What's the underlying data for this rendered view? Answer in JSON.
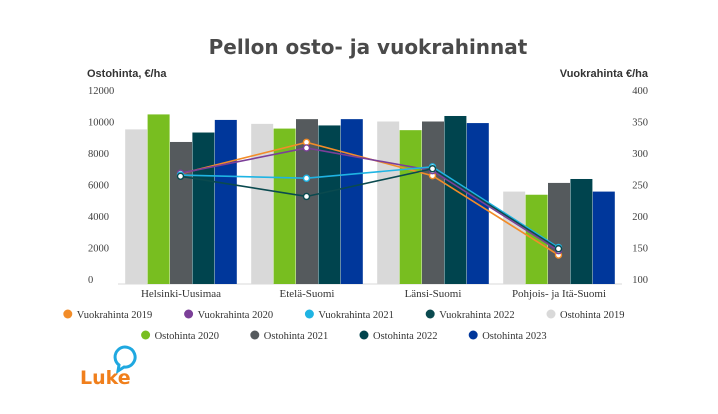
{
  "chart_data": {
    "type": "bar",
    "title": "Pellon osto- ja vuokrahinnat",
    "ylabel": "Ostohinta, €/ha",
    "y2label": "Vuokrahinta €/ha",
    "ylim": [
      0,
      12000
    ],
    "y2lim": [
      100,
      400
    ],
    "yticks": [
      "0",
      "2000",
      "4000",
      "6000",
      "8000",
      "10000",
      "12000"
    ],
    "y2ticks": [
      "100",
      "150",
      "200",
      "250",
      "300",
      "350",
      "400"
    ],
    "categories": [
      "Helsinki-Uusimaa",
      "Etelä-Suomi",
      "Länsi-Suomi",
      "Pohjois- ja Itä-Suomi"
    ],
    "bar_series": [
      {
        "name": "Ostohinta 2019",
        "color": "#d9d9d9",
        "values": [
          9500,
          9850,
          10000,
          5550
        ]
      },
      {
        "name": "Ostohinta 2020",
        "color": "#78be20",
        "values": [
          10450,
          9550,
          9450,
          5350
        ]
      },
      {
        "name": "Ostohinta 2021",
        "color": "#555a5d",
        "values": [
          8700,
          10150,
          10000,
          6100
        ]
      },
      {
        "name": "Ostohinta 2022",
        "color": "#00444e",
        "values": [
          9300,
          9750,
          10350,
          6350
        ]
      },
      {
        "name": "Ostohinta 2023",
        "color": "#00379b",
        "values": [
          10100,
          10150,
          9900,
          5550
        ]
      }
    ],
    "line_series": [
      {
        "name": "Vuokrahinta 2019",
        "color": "#f28c28",
        "values": [
          267,
          317,
          264,
          138
        ]
      },
      {
        "name": "Vuokrahinta 2020",
        "color": "#7b3f98",
        "values": [
          268,
          308,
          272,
          145
        ]
      },
      {
        "name": "Vuokrahinta 2021",
        "color": "#1fb4e3",
        "values": [
          265,
          260,
          278,
          150
        ]
      },
      {
        "name": "Vuokrahinta 2022",
        "color": "#0a4a4f",
        "values": [
          263,
          231,
          275,
          148
        ]
      }
    ],
    "legend": [
      {
        "label": "Vuokrahinta 2019",
        "color": "#f28c28"
      },
      {
        "label": "Vuokrahinta 2020",
        "color": "#7b3f98"
      },
      {
        "label": "Vuokrahinta 2021",
        "color": "#1fb4e3"
      },
      {
        "label": "Vuokrahinta 2022",
        "color": "#0a4a4f"
      },
      {
        "label": "Ostohinta 2019",
        "color": "#d9d9d9"
      },
      {
        "label": "Ostohinta 2020",
        "color": "#78be20"
      },
      {
        "label": "Ostohinta 2021",
        "color": "#555a5d"
      },
      {
        "label": "Ostohinta 2022",
        "color": "#00444e"
      },
      {
        "label": "Ostohinta 2023",
        "color": "#00379b"
      }
    ],
    "legend_position": "bottom",
    "grid": false
  },
  "logo": {
    "text": "Luke",
    "color": "#f07f1c",
    "icon_color": "#1fa8e0"
  }
}
